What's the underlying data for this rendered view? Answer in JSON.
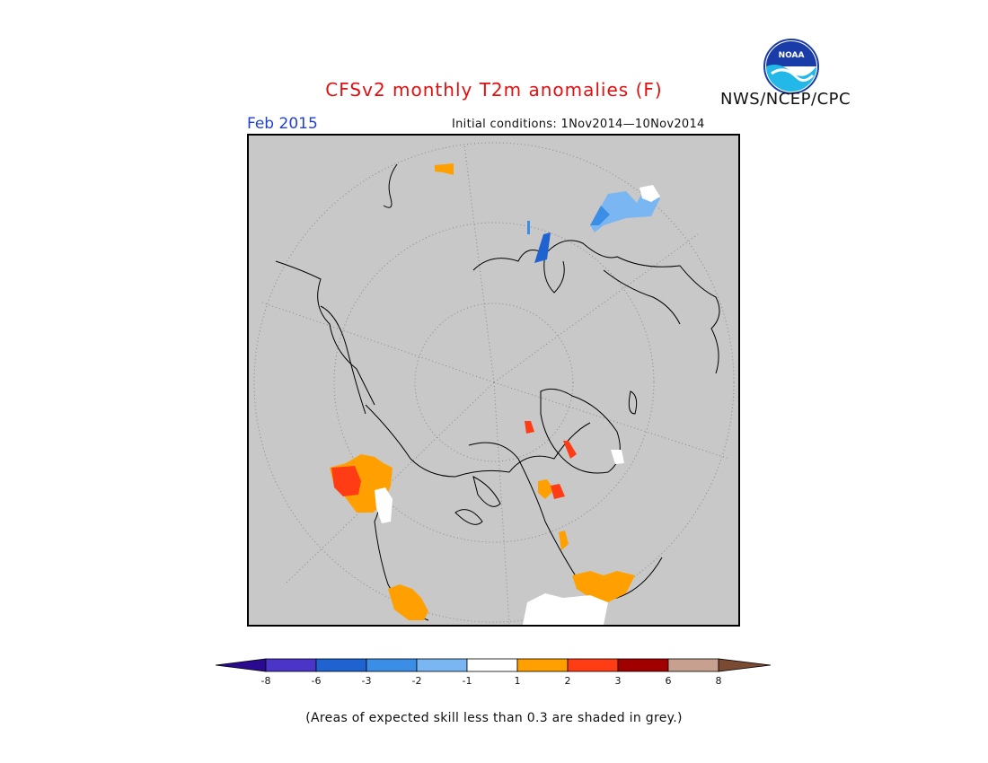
{
  "header": {
    "title": "CFSv2 monthly T2m anomalies (F)",
    "agency": "NWS/NCEP/CPC",
    "logo_text": "NOAA",
    "month": "Feb 2015",
    "initial_conditions": "Initial conditions: 1Nov2014—10Nov2014"
  },
  "legend": {
    "labels": [
      "-8",
      "-6",
      "-3",
      "-2",
      "-1",
      "1",
      "2",
      "3",
      "6",
      "8"
    ],
    "colors": [
      "#2a0a90",
      "#4b35c8",
      "#1f63d0",
      "#3b8ee6",
      "#79b6f2",
      "#ffffff",
      "#ffa000",
      "#ff3c14",
      "#a00000",
      "#c8a090",
      "#7a4a32"
    ]
  },
  "map": {
    "skill_grey": "#c8c8c8",
    "land_outline": "#000000"
  },
  "footnote": "(Areas of expected skill less than 0.3 are shaded in grey.)"
}
